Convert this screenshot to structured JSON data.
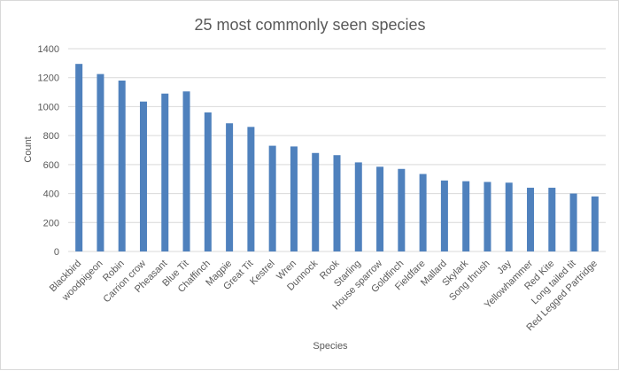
{
  "chart_data": {
    "type": "bar",
    "title": "25 most commonly seen species",
    "xlabel": "Species",
    "ylabel": "Count",
    "ylim": [
      0,
      1400
    ],
    "yticks": [
      0,
      200,
      400,
      600,
      800,
      1000,
      1200,
      1400
    ],
    "grid": true,
    "legend": "none",
    "bar_color": "#4f81bd",
    "categories": [
      "Blackbird",
      "woodpigeon",
      "Robin",
      "Carrion crow",
      "Pheasant",
      "Blue Tit",
      "Chaffinch",
      "Magpie",
      "Great Tit",
      "Kestrel",
      "Wren",
      "Dunnock",
      "Rook",
      "Starling",
      "House sparrow",
      "Goldfinch",
      "Fieldfare",
      "Mallard",
      "Skylark",
      "Song thrush",
      "Jay",
      "Yellowhammer",
      "Red Kite",
      "Long tailed tit",
      "Red Legged Partridge"
    ],
    "values": [
      1295,
      1225,
      1180,
      1035,
      1090,
      1105,
      960,
      885,
      860,
      730,
      725,
      680,
      665,
      615,
      585,
      570,
      535,
      490,
      485,
      480,
      475,
      440,
      440,
      400,
      380
    ]
  }
}
